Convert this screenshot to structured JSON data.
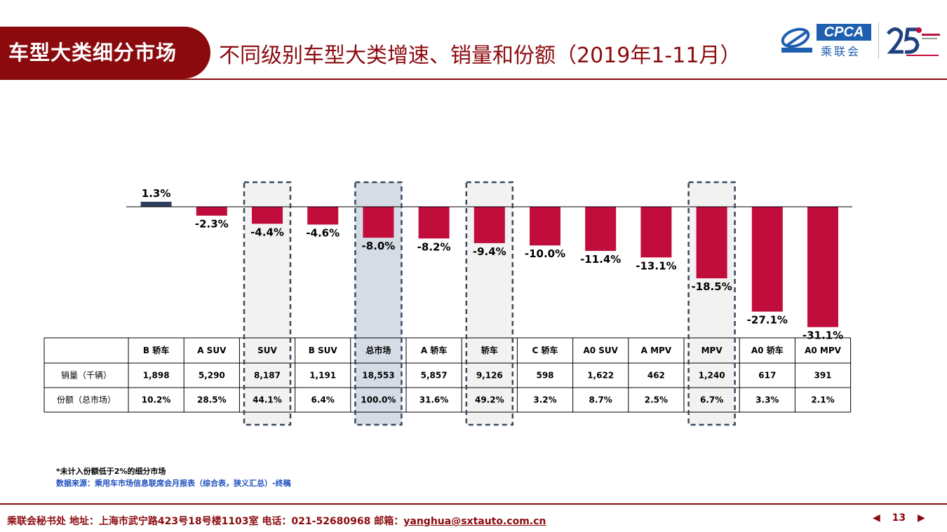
{
  "header": {
    "section_title": "车型大类细分市场",
    "page_title": "不同级别车型大类增速、销量和份额（2019年1-11月）",
    "logo_cpca": "CPCA",
    "logo_cpca_cn": "乘联会"
  },
  "table": {
    "row_labels": [
      "销量（千辆）",
      "份额（总市场）"
    ]
  },
  "chart_data": {
    "type": "bar",
    "categories": [
      "B 轿车",
      "A SUV",
      "SUV",
      "B SUV",
      "总市场",
      "A 轿车",
      "轿车",
      "C 轿车",
      "A0 SUV",
      "A MPV",
      "MPV",
      "A0 轿车",
      "A0 MPV"
    ],
    "series": [
      {
        "values": [
          1.3,
          -2.3,
          -4.4,
          -4.6,
          -8.0,
          -8.2,
          -9.4,
          -10.0,
          -11.4,
          -13.1,
          -18.5,
          -27.1,
          -31.1
        ]
      }
    ],
    "value_labels": [
      "1.3%",
      "-2.3%",
      "-4.4%",
      "-4.6%",
      "-8.0%",
      "-8.2%",
      "-9.4%",
      "-10.0%",
      "-11.4%",
      "-13.1%",
      "-18.5%",
      "-27.1%",
      "-31.1%"
    ],
    "sales": [
      "1,898",
      "5,290",
      "8,187",
      "1,191",
      "18,553",
      "5,857",
      "9,126",
      "598",
      "1,622",
      "462",
      "1,240",
      "617",
      "391"
    ],
    "share": [
      "10.2%",
      "28.5%",
      "44.1%",
      "6.4%",
      "100.0%",
      "31.6%",
      "49.2%",
      "3.2%",
      "8.7%",
      "2.5%",
      "6.7%",
      "3.3%",
      "2.1%"
    ],
    "highlighted": [
      "SUV",
      "总市场",
      "轿车",
      "MPV"
    ],
    "colors": {
      "positive": "#2e3f5c",
      "negative": "#c10d3c",
      "highlight_fill": "#f2f2f2",
      "total_fill": "#d6dce6",
      "box_stroke": "#3b4a5e"
    },
    "ylim": [
      -31.1,
      1.3
    ]
  },
  "notes": {
    "footnote": "*未计入份额低于2%的细分市场",
    "source": "数据来源：乘用车市场信息联席会月报表（综合表，狭义汇总）-终稿"
  },
  "footer": {
    "text": "乘联会秘书处   地址：上海市武宁路423号18号楼1103室  电话：021-52680968   邮箱：",
    "email": "yanghua@sxtauto.com.cn",
    "page_number": "13"
  }
}
